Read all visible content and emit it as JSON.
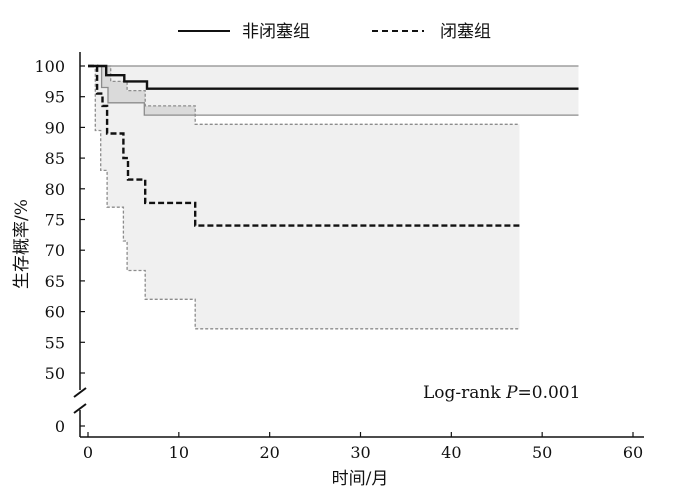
{
  "chart_data": {
    "type": "line",
    "xlabel": "时间/月",
    "ylabel": "生存概率/%",
    "xlim": [
      0,
      60
    ],
    "ylim": [
      50,
      100
    ],
    "y_axis_break": true,
    "y_extra_tick": 0,
    "x_ticks": [
      0,
      10,
      20,
      30,
      40,
      50,
      60
    ],
    "y_ticks": [
      100,
      95,
      90,
      85,
      80,
      75,
      70,
      65,
      60,
      55,
      50
    ],
    "grid": false,
    "legend_position": "top-center",
    "annotation": {
      "prefix": "Log-rank ",
      "stat": "P",
      "suffix": "=0.001"
    },
    "series": [
      {
        "name": "非闭塞组",
        "style": "solid",
        "x": [
          0,
          2,
          4,
          6.5,
          54
        ],
        "y": [
          100,
          98.5,
          97.5,
          96.3,
          96.3
        ],
        "ci_upper": {
          "x": [
            0,
            3.8,
            6.5,
            54
          ],
          "y": [
            100,
            100,
            100,
            100
          ]
        },
        "ci_lower": {
          "x": [
            0,
            1.5,
            2.2,
            6.2,
            54
          ],
          "y": [
            100,
            96.5,
            94,
            92,
            92
          ]
        }
      },
      {
        "name": "闭塞组",
        "style": "dashed",
        "x": [
          0,
          1,
          1.6,
          2.1,
          3.9,
          4.4,
          6.3,
          11.8,
          47.5
        ],
        "y": [
          100,
          95.5,
          93.5,
          89,
          85,
          81.5,
          77.7,
          74,
          74
        ],
        "ci_upper": {
          "x": [
            0,
            2.5,
            4.3,
            6.3,
            11.8,
            47.5
          ],
          "y": [
            100,
            97.5,
            96,
            93.5,
            90.5,
            90.5
          ]
        },
        "ci_lower": {
          "x": [
            0,
            0.8,
            1.4,
            2.1,
            3.9,
            4.3,
            6.3,
            11.8,
            47.5
          ],
          "y": [
            100,
            89.5,
            83,
            77,
            71.5,
            66.7,
            62,
            57.2,
            57.2
          ]
        }
      }
    ]
  },
  "colors": {
    "line": "#111111",
    "ci_line": "#8c8c8c",
    "ci_fill": "#f0f0f0",
    "ci_overlap_fill": "#dadada",
    "axis": "#111111"
  }
}
